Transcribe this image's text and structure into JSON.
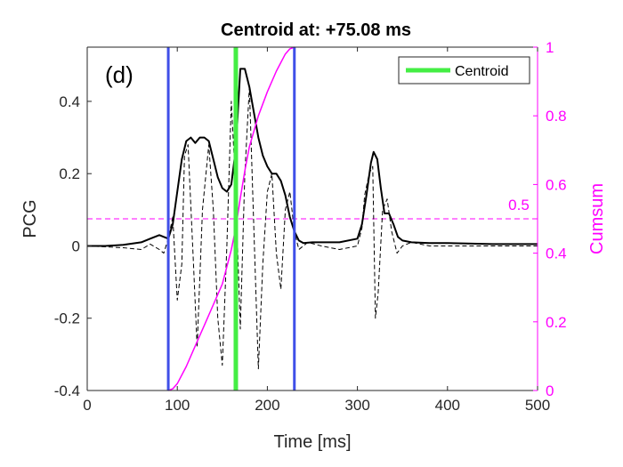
{
  "chart_data": {
    "type": "line",
    "title": "Centroid at: +75.08 ms",
    "panel_label": "(d)",
    "xlabel": "Time [ms]",
    "ylabel": "PCG",
    "y2label": "Cumsum",
    "xlim": [
      0,
      500
    ],
    "ylim": [
      -0.4,
      0.55
    ],
    "y2lim": [
      0,
      1
    ],
    "xticks": [
      0,
      100,
      200,
      300,
      400,
      500
    ],
    "yticks": [
      -0.4,
      -0.2,
      0,
      0.2,
      0.4
    ],
    "y2ticks": [
      0,
      0.2,
      0.4,
      0.6,
      0.8,
      1
    ],
    "xtick_labels": [
      "0",
      "100",
      "200",
      "300",
      "400",
      "500"
    ],
    "ytick_labels": [
      "-0.4",
      "-0.2",
      "0",
      "0.2",
      "0.4"
    ],
    "y2tick_labels": [
      "0",
      "0.2",
      "0.4",
      "0.6",
      "0.8",
      "1"
    ],
    "colors": {
      "envelope": "#000000",
      "signal": "#000000",
      "cumsum": "#ff00ff",
      "centroid": "#44ee44",
      "bounds": "#3f4fe8",
      "threshold": "#ff00ff",
      "axis": "#262626"
    },
    "legend": {
      "entries": [
        "Centroid"
      ],
      "placement": "top-right"
    },
    "threshold": {
      "value": 0.5,
      "label": "0.5",
      "axis": "right"
    },
    "vlines": {
      "start_ms": 90,
      "end_ms": 230,
      "centroid_ms": 165
    },
    "series": [
      {
        "name": "envelope",
        "style": "solid",
        "axis": "left",
        "x": [
          0,
          20,
          40,
          60,
          70,
          80,
          90,
          95,
          100,
          105,
          110,
          115,
          120,
          125,
          130,
          135,
          140,
          145,
          150,
          155,
          160,
          165,
          170,
          175,
          180,
          185,
          190,
          195,
          200,
          205,
          210,
          215,
          220,
          225,
          230,
          235,
          240,
          250,
          260,
          280,
          300,
          305,
          310,
          315,
          318,
          322,
          326,
          330,
          335,
          340,
          345,
          350,
          360,
          380,
          400,
          450,
          500
        ],
        "y": [
          0.0,
          0.0,
          0.003,
          0.01,
          0.02,
          0.03,
          0.02,
          0.06,
          0.15,
          0.24,
          0.29,
          0.3,
          0.285,
          0.3,
          0.3,
          0.29,
          0.24,
          0.19,
          0.16,
          0.15,
          0.17,
          0.27,
          0.49,
          0.49,
          0.44,
          0.37,
          0.3,
          0.25,
          0.22,
          0.2,
          0.2,
          0.18,
          0.14,
          0.08,
          0.04,
          0.015,
          0.008,
          0.01,
          0.01,
          0.01,
          0.02,
          0.06,
          0.14,
          0.23,
          0.26,
          0.24,
          0.16,
          0.09,
          0.09,
          0.06,
          0.025,
          0.015,
          0.01,
          0.008,
          0.008,
          0.005,
          0.005
        ]
      },
      {
        "name": "signal",
        "style": "dashed",
        "axis": "left",
        "x": [
          0,
          40,
          60,
          70,
          80,
          85,
          90,
          95,
          100,
          105,
          108,
          112,
          118,
          122,
          128,
          135,
          140,
          145,
          150,
          155,
          160,
          165,
          170,
          175,
          180,
          185,
          190,
          195,
          200,
          205,
          210,
          215,
          220,
          225,
          230,
          235,
          245,
          260,
          280,
          300,
          305,
          308,
          313,
          317,
          320,
          323,
          328,
          333,
          338,
          344,
          350,
          360,
          380,
          420,
          500
        ],
        "y": [
          0.0,
          -0.005,
          -0.01,
          0.005,
          -0.01,
          -0.02,
          0.02,
          0.08,
          -0.15,
          -0.05,
          0.25,
          0.28,
          -0.05,
          -0.28,
          0.1,
          0.28,
          0.1,
          -0.2,
          -0.33,
          0.0,
          0.4,
          0.15,
          -0.23,
          0.2,
          0.44,
          0.05,
          -0.34,
          -0.05,
          0.15,
          0.2,
          -0.02,
          -0.12,
          0.1,
          0.15,
          0.04,
          -0.01,
          0.01,
          0.0,
          -0.01,
          0.0,
          0.05,
          0.14,
          0.2,
          0.22,
          -0.2,
          -0.13,
          0.1,
          0.13,
          0.04,
          -0.02,
          0.0,
          0.01,
          0.0,
          0.0,
          0.0
        ]
      },
      {
        "name": "cumsum",
        "style": "solid",
        "axis": "right",
        "x": [
          90,
          95,
          100,
          110,
          120,
          130,
          140,
          150,
          160,
          165,
          170,
          175,
          180,
          190,
          200,
          210,
          220,
          225,
          230
        ],
        "y": [
          0.0,
          0.005,
          0.02,
          0.07,
          0.13,
          0.19,
          0.25,
          0.31,
          0.41,
          0.475,
          0.56,
          0.64,
          0.71,
          0.8,
          0.87,
          0.93,
          0.98,
          0.995,
          1.0
        ]
      }
    ]
  }
}
